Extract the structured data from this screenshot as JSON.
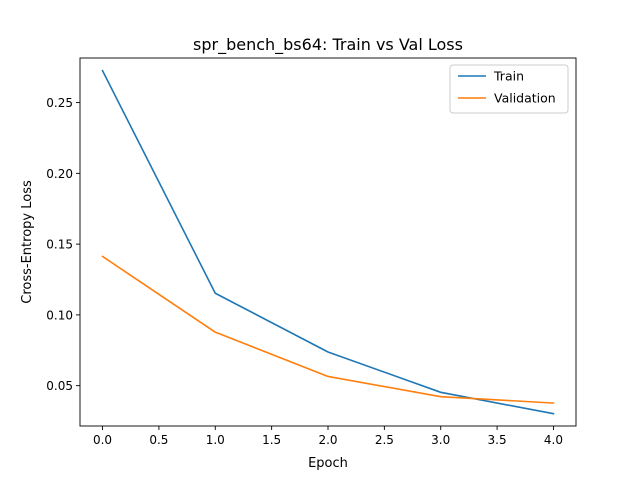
{
  "chart_data": {
    "type": "line",
    "title": "spr_bench_bs64: Train vs Val Loss",
    "xlabel": "Epoch",
    "ylabel": "Cross-Entropy Loss",
    "xlim": [
      -0.2,
      4.2
    ],
    "ylim": [
      0.0215,
      0.2815
    ],
    "xticks": [
      0.0,
      0.5,
      1.0,
      1.5,
      2.0,
      2.5,
      3.0,
      3.5,
      4.0
    ],
    "xtick_labels": [
      "0.0",
      "0.5",
      "1.0",
      "1.5",
      "2.0",
      "2.5",
      "3.0",
      "3.5",
      "4.0"
    ],
    "yticks": [
      0.05,
      0.1,
      0.15,
      0.2,
      0.25
    ],
    "ytick_labels": [
      "0.05",
      "0.10",
      "0.15",
      "0.20",
      "0.25"
    ],
    "grid": false,
    "legend_position": "top-right",
    "x": [
      0,
      1,
      2,
      3,
      4
    ],
    "series": [
      {
        "name": "Train",
        "values": [
          0.2725,
          0.1153,
          0.0738,
          0.0453,
          0.0302
        ],
        "color": "#1f77b4"
      },
      {
        "name": "Validation",
        "values": [
          0.1413,
          0.0878,
          0.0565,
          0.0422,
          0.0377
        ],
        "color": "#ff7f0e"
      }
    ]
  }
}
